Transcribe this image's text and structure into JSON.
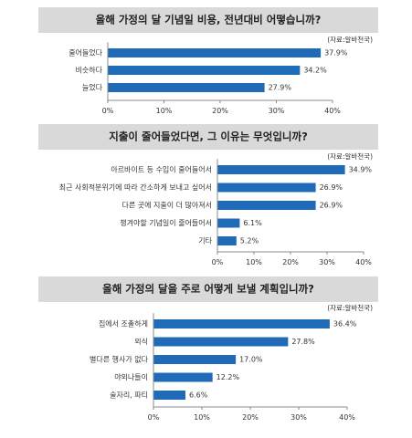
{
  "chart_data": [
    {
      "type": "bar",
      "orientation": "horizontal",
      "title": "올해 가정의 달 기념일 비용, 전년대비 어떻습니까?",
      "source": "(자료:알바천국)",
      "categories": [
        "줄어들었다",
        "비슷하다",
        "늘었다"
      ],
      "values": [
        37.9,
        34.2,
        27.9
      ],
      "value_labels": [
        "37.9%",
        "34.2%",
        "27.9%"
      ],
      "xlim": [
        0,
        40
      ],
      "ticks": [
        "0%",
        "10%",
        "20%",
        "30%",
        "40%"
      ],
      "color": "#1f6bb7",
      "grid": false
    },
    {
      "type": "bar",
      "orientation": "horizontal",
      "title": "지출이 줄어들었다면, 그 이유는 무엇입니까?",
      "source": "(자료:알바천국)",
      "categories": [
        "아르바이트 등 수입이 줄어들어서",
        "최근 사회적분위기에 따라 간소하게 보내고 싶어서",
        "다른 곳에 지출이 더 많아져서",
        "챙겨야할 기념일이 줄어들어서",
        "기타"
      ],
      "values": [
        34.9,
        26.9,
        26.9,
        6.1,
        5.2
      ],
      "value_labels": [
        "34.9%",
        "26.9%",
        "26.9%",
        "6.1%",
        "5.2%"
      ],
      "xlim": [
        0,
        40
      ],
      "ticks": [
        "0%",
        "10%",
        "20%",
        "30%",
        "40%"
      ],
      "color": "#1f6bb7",
      "grid": false
    },
    {
      "type": "bar",
      "orientation": "horizontal",
      "title": "올해 가정의 달을 주로 어떻게 보낼 계획입니까?",
      "source": "(자료:알바천국)",
      "categories": [
        "집에서 조촐하게",
        "외식",
        "별다른 행사가 없다",
        "야외나들이",
        "술자리, 파티"
      ],
      "values": [
        36.4,
        27.8,
        17.0,
        12.2,
        6.6
      ],
      "value_labels": [
        "36.4%",
        "27.8%",
        "17.0%",
        "12.2%",
        "6.6%"
      ],
      "xlim": [
        0,
        40
      ],
      "ticks": [
        "0%",
        "10%",
        "20%",
        "30%",
        "40%"
      ],
      "color": "#1f6bb7",
      "grid": false
    }
  ]
}
